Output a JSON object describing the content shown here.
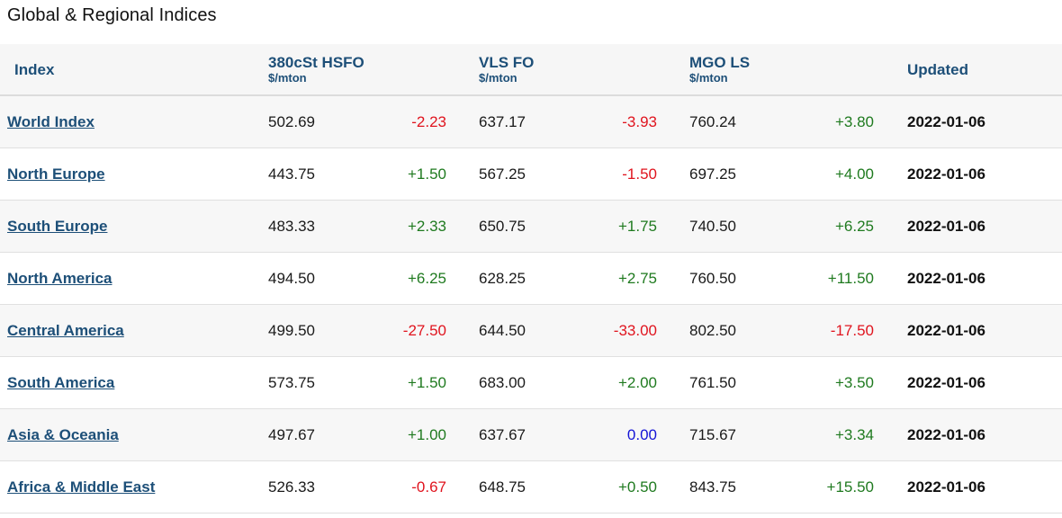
{
  "title": "Global & Regional Indices",
  "headers": {
    "index": "Index",
    "hsfo": {
      "label": "380cSt HSFO",
      "unit": "$/mton"
    },
    "vlsfo": {
      "label": "VLS FO",
      "unit": "$/mton"
    },
    "mgo": {
      "label": "MGO LS",
      "unit": "$/mton"
    },
    "updated": "Updated"
  },
  "colors": {
    "header_text": "#1d4f78",
    "positive": "#1f7a1f",
    "negative": "#e0141e",
    "neutral": "#1414d6"
  },
  "rows": [
    {
      "name": "World Index",
      "hsfo": "502.69",
      "hsfo_chg": "-2.23",
      "vlsfo": "637.17",
      "vlsfo_chg": "-3.93",
      "mgo": "760.24",
      "mgo_chg": "+3.80",
      "updated": "2022-01-06"
    },
    {
      "name": "North Europe",
      "hsfo": "443.75",
      "hsfo_chg": "+1.50",
      "vlsfo": "567.25",
      "vlsfo_chg": "-1.50",
      "mgo": "697.25",
      "mgo_chg": "+4.00",
      "updated": "2022-01-06"
    },
    {
      "name": "South Europe",
      "hsfo": "483.33",
      "hsfo_chg": "+2.33",
      "vlsfo": "650.75",
      "vlsfo_chg": "+1.75",
      "mgo": "740.50",
      "mgo_chg": "+6.25",
      "updated": "2022-01-06"
    },
    {
      "name": "North America",
      "hsfo": "494.50",
      "hsfo_chg": "+6.25",
      "vlsfo": "628.25",
      "vlsfo_chg": "+2.75",
      "mgo": "760.50",
      "mgo_chg": "+11.50",
      "updated": "2022-01-06"
    },
    {
      "name": "Central America",
      "hsfo": "499.50",
      "hsfo_chg": "-27.50",
      "vlsfo": "644.50",
      "vlsfo_chg": "-33.00",
      "mgo": "802.50",
      "mgo_chg": "-17.50",
      "updated": "2022-01-06"
    },
    {
      "name": "South America",
      "hsfo": "573.75",
      "hsfo_chg": "+1.50",
      "vlsfo": "683.00",
      "vlsfo_chg": "+2.00",
      "mgo": "761.50",
      "mgo_chg": "+3.50",
      "updated": "2022-01-06"
    },
    {
      "name": "Asia & Oceania",
      "hsfo": "497.67",
      "hsfo_chg": "+1.00",
      "vlsfo": "637.67",
      "vlsfo_chg": "0.00",
      "mgo": "715.67",
      "mgo_chg": "+3.34",
      "updated": "2022-01-06"
    },
    {
      "name": "Africa & Middle East",
      "hsfo": "526.33",
      "hsfo_chg": "-0.67",
      "vlsfo": "648.75",
      "vlsfo_chg": "+0.50",
      "mgo": "843.75",
      "mgo_chg": "+15.50",
      "updated": "2022-01-06"
    }
  ]
}
